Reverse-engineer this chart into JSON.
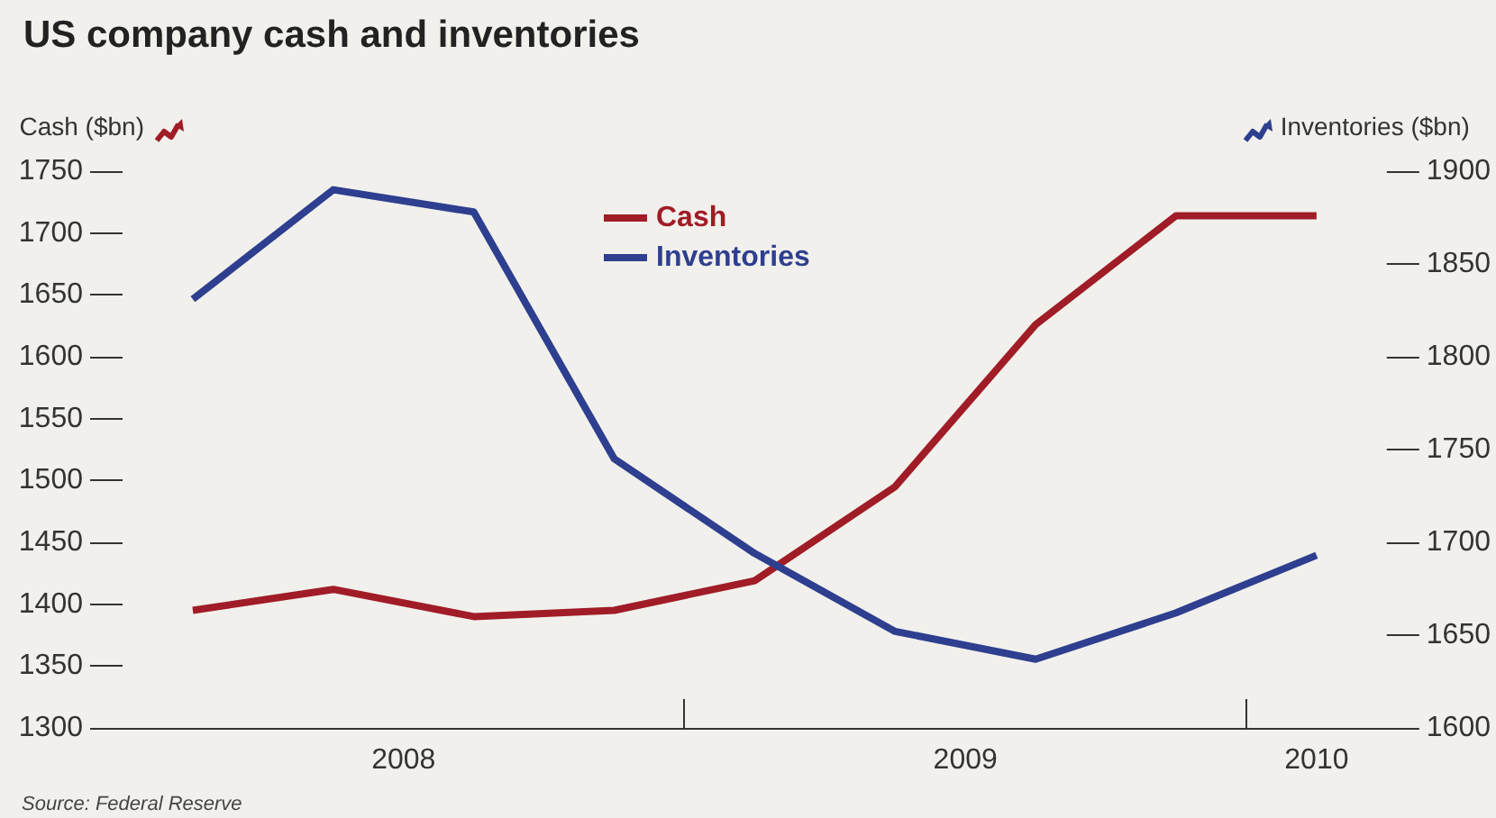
{
  "chart_data": {
    "type": "line",
    "title": "US company cash and inventories",
    "ylabel": "Cash ($bn)",
    "y2label": "Inventories ($bn)",
    "x": [
      2008.125,
      2008.375,
      2008.625,
      2008.875,
      2009.125,
      2009.375,
      2009.625,
      2009.875,
      2010.125
    ],
    "xlim": [
      2008,
      2010.25
    ],
    "xticks": [
      {
        "value": 2008.5,
        "label": "2008"
      },
      {
        "value": 2009,
        "label": null
      },
      {
        "value": 2009.5,
        "label": "2009"
      },
      {
        "value": 2010,
        "label": null
      },
      {
        "value": 2010.125,
        "label": "2010"
      }
    ],
    "series": [
      {
        "name": "Cash",
        "color": "#a01c26",
        "values": [
          1395,
          1412,
          1390,
          1395,
          1419,
          1495,
          1626,
          1714,
          1714
        ]
      },
      {
        "name": "Inventories",
        "color": "#2e3f8f",
        "axis": "y2",
        "values": [
          1831,
          1890,
          1878,
          1745,
          1694,
          1652,
          1637,
          1662,
          1693
        ]
      }
    ],
    "ylim": [
      1300,
      1750
    ],
    "yticks": [
      1300,
      1350,
      1400,
      1450,
      1500,
      1550,
      1600,
      1650,
      1700,
      1750
    ],
    "y2lim": [
      1600,
      1900
    ],
    "y2ticks": [
      1600,
      1650,
      1700,
      1750,
      1800,
      1850,
      1900
    ],
    "legend": "top",
    "grid": false,
    "marker": "none",
    "line_style": "solid",
    "annotations": [
      "Source: Federal Reserve"
    ]
  }
}
